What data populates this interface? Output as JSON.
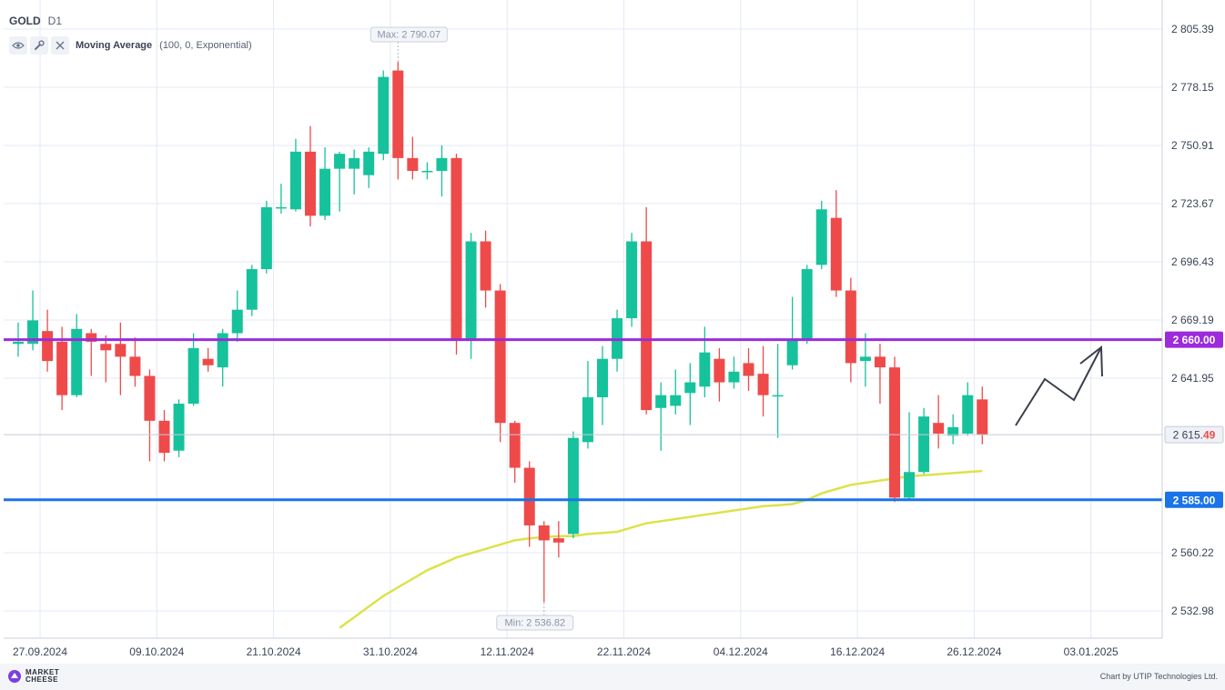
{
  "header": {
    "symbol": "GOLD",
    "timeframe": "D1"
  },
  "indicator": {
    "name": "Moving Average",
    "params": "(100, 0, Exponential)"
  },
  "footer": {
    "logo_line1": "MARKET",
    "logo_line2": "CHEESE",
    "credit": "Chart by UTIP Technologies Ltd."
  },
  "colors": {
    "up": "#16c29b",
    "down": "#ef4a4a",
    "ma": "#dde24a",
    "resistance": "#9b2bdc",
    "support": "#1a73e8",
    "grid": "#e3e8f4",
    "axis_text": "#3a4356"
  },
  "icons": [
    "eye-icon",
    "wrench-icon",
    "close-icon"
  ],
  "chart_data": {
    "type": "candlestick",
    "instrument": "GOLD",
    "timeframe": "D1",
    "ylim": [
      2520,
      2810
    ],
    "y_ticks": [
      "2 805.39",
      "2 778.15",
      "2 750.91",
      "2 723.67",
      "2 696.43",
      "2 669.19",
      "2 641.95",
      "2 615.49",
      "2 560.22",
      "2 532.98"
    ],
    "x_ticks": [
      "27.09.2024",
      "09.10.2024",
      "21.10.2024",
      "31.10.2024",
      "12.11.2024",
      "22.11.2024",
      "04.12.2024",
      "16.12.2024",
      "26.12.2024",
      "03.01.2025"
    ],
    "grid": true,
    "last_price": {
      "label": "2 615.49",
      "value": 2615.49,
      "emphasis_digits": "49"
    },
    "max_marker": {
      "label": "Max: 2 790.07",
      "value": 2790.07,
      "candle_index": 26
    },
    "min_marker": {
      "label": "Min: 2 536.82",
      "value": 2536.82,
      "candle_index": 36
    },
    "levels": [
      {
        "label": "2 660.00",
        "value": 2660.0,
        "color": "#9b2bdc"
      },
      {
        "label": "2 585.00",
        "value": 2585.0,
        "color": "#1a73e8"
      }
    ],
    "candles": [
      {
        "o": 2658,
        "h": 2668,
        "l": 2652,
        "c": 2659
      },
      {
        "o": 2658,
        "h": 2683,
        "l": 2655,
        "c": 2669
      },
      {
        "o": 2664,
        "h": 2674,
        "l": 2645,
        "c": 2650
      },
      {
        "o": 2659,
        "h": 2666,
        "l": 2627,
        "c": 2634
      },
      {
        "o": 2634,
        "h": 2672,
        "l": 2633,
        "c": 2665
      },
      {
        "o": 2663,
        "h": 2665,
        "l": 2643,
        "c": 2659
      },
      {
        "o": 2658,
        "h": 2662,
        "l": 2640,
        "c": 2655
      },
      {
        "o": 2658,
        "h": 2668,
        "l": 2634,
        "c": 2652
      },
      {
        "o": 2652,
        "h": 2661,
        "l": 2638,
        "c": 2643
      },
      {
        "o": 2643,
        "h": 2646,
        "l": 2603,
        "c": 2622
      },
      {
        "o": 2622,
        "h": 2627,
        "l": 2603,
        "c": 2607
      },
      {
        "o": 2608,
        "h": 2632,
        "l": 2605,
        "c": 2630
      },
      {
        "o": 2630,
        "h": 2663,
        "l": 2629,
        "c": 2656
      },
      {
        "o": 2651,
        "h": 2656,
        "l": 2645,
        "c": 2648
      },
      {
        "o": 2647,
        "h": 2665,
        "l": 2638,
        "c": 2663
      },
      {
        "o": 2663,
        "h": 2683,
        "l": 2659,
        "c": 2674
      },
      {
        "o": 2674,
        "h": 2695,
        "l": 2671,
        "c": 2693
      },
      {
        "o": 2693,
        "h": 2725,
        "l": 2691,
        "c": 2722
      },
      {
        "o": 2722,
        "h": 2733,
        "l": 2719,
        "c": 2722
      },
      {
        "o": 2721,
        "h": 2754,
        "l": 2720,
        "c": 2748
      },
      {
        "o": 2748,
        "h": 2760,
        "l": 2713,
        "c": 2718
      },
      {
        "o": 2718,
        "h": 2750,
        "l": 2716,
        "c": 2740
      },
      {
        "o": 2740,
        "h": 2748,
        "l": 2720,
        "c": 2747
      },
      {
        "o": 2740,
        "h": 2749,
        "l": 2728,
        "c": 2745
      },
      {
        "o": 2737,
        "h": 2750,
        "l": 2731,
        "c": 2748
      },
      {
        "o": 2747,
        "h": 2786,
        "l": 2744,
        "c": 2783
      },
      {
        "o": 2786,
        "h": 2790,
        "l": 2735,
        "c": 2745
      },
      {
        "o": 2745,
        "h": 2755,
        "l": 2735,
        "c": 2739
      },
      {
        "o": 2739,
        "h": 2743,
        "l": 2735,
        "c": 2739
      },
      {
        "o": 2739,
        "h": 2751,
        "l": 2727,
        "c": 2745
      },
      {
        "o": 2745,
        "h": 2747,
        "l": 2653,
        "c": 2660
      },
      {
        "o": 2660,
        "h": 2710,
        "l": 2651,
        "c": 2706
      },
      {
        "o": 2706,
        "h": 2711,
        "l": 2675,
        "c": 2683
      },
      {
        "o": 2683,
        "h": 2686,
        "l": 2612,
        "c": 2621
      },
      {
        "o": 2621,
        "h": 2622,
        "l": 2593,
        "c": 2600
      },
      {
        "o": 2600,
        "h": 2603,
        "l": 2563,
        "c": 2573
      },
      {
        "o": 2573,
        "h": 2575,
        "l": 2537,
        "c": 2566
      },
      {
        "o": 2567,
        "h": 2575,
        "l": 2558,
        "c": 2565
      },
      {
        "o": 2569,
        "h": 2617,
        "l": 2567,
        "c": 2614
      },
      {
        "o": 2612,
        "h": 2650,
        "l": 2609,
        "c": 2633
      },
      {
        "o": 2633,
        "h": 2657,
        "l": 2620,
        "c": 2651
      },
      {
        "o": 2651,
        "h": 2674,
        "l": 2645,
        "c": 2670
      },
      {
        "o": 2670,
        "h": 2710,
        "l": 2666,
        "c": 2706
      },
      {
        "o": 2706,
        "h": 2722,
        "l": 2625,
        "c": 2627
      },
      {
        "o": 2628,
        "h": 2640,
        "l": 2608,
        "c": 2634
      },
      {
        "o": 2629,
        "h": 2646,
        "l": 2625,
        "c": 2634
      },
      {
        "o": 2635,
        "h": 2649,
        "l": 2620,
        "c": 2640
      },
      {
        "o": 2638,
        "h": 2666,
        "l": 2633,
        "c": 2654
      },
      {
        "o": 2651,
        "h": 2656,
        "l": 2631,
        "c": 2640
      },
      {
        "o": 2640,
        "h": 2652,
        "l": 2637,
        "c": 2645
      },
      {
        "o": 2649,
        "h": 2656,
        "l": 2636,
        "c": 2643
      },
      {
        "o": 2644,
        "h": 2657,
        "l": 2624,
        "c": 2634
      },
      {
        "o": 2634,
        "h": 2658,
        "l": 2614,
        "c": 2634
      },
      {
        "o": 2648,
        "h": 2680,
        "l": 2646,
        "c": 2660
      },
      {
        "o": 2660,
        "h": 2695,
        "l": 2658,
        "c": 2693
      },
      {
        "o": 2695,
        "h": 2725,
        "l": 2693,
        "c": 2721
      },
      {
        "o": 2717,
        "h": 2730,
        "l": 2680,
        "c": 2683
      },
      {
        "o": 2683,
        "h": 2689,
        "l": 2640,
        "c": 2649
      },
      {
        "o": 2650,
        "h": 2663,
        "l": 2638,
        "c": 2652
      },
      {
        "o": 2652,
        "h": 2658,
        "l": 2630,
        "c": 2647
      },
      {
        "o": 2647,
        "h": 2652,
        "l": 2584,
        "c": 2586
      },
      {
        "o": 2586,
        "h": 2626,
        "l": 2585,
        "c": 2598
      },
      {
        "o": 2598,
        "h": 2628,
        "l": 2597,
        "c": 2624
      },
      {
        "o": 2621,
        "h": 2634,
        "l": 2609,
        "c": 2616
      },
      {
        "o": 2615,
        "h": 2625,
        "l": 2611,
        "c": 2619
      },
      {
        "o": 2616,
        "h": 2640,
        "l": 2615,
        "c": 2634
      },
      {
        "o": 2632,
        "h": 2638,
        "l": 2611,
        "c": 2615.49
      }
    ],
    "ma_series": {
      "name": "Moving Average (100, 0, Exponential)",
      "values": [
        null,
        null,
        null,
        null,
        null,
        null,
        null,
        null,
        null,
        null,
        null,
        null,
        null,
        null,
        null,
        null,
        null,
        null,
        null,
        null,
        null,
        null,
        2525,
        2530,
        2535,
        2540,
        2544,
        2548,
        2552,
        2555,
        2558,
        2560,
        2562,
        2564,
        2566,
        2567,
        2567.5,
        2568,
        2568,
        2569,
        2569.5,
        2570,
        2572,
        2574,
        2575,
        2576,
        2577,
        2578,
        2579,
        2580,
        2581,
        2582,
        2582.5,
        2583,
        2585,
        2588,
        2590,
        2592,
        2593,
        2594,
        2595,
        2596,
        2596.5,
        2597,
        2597.5,
        2598,
        2598.5
      ]
    }
  }
}
